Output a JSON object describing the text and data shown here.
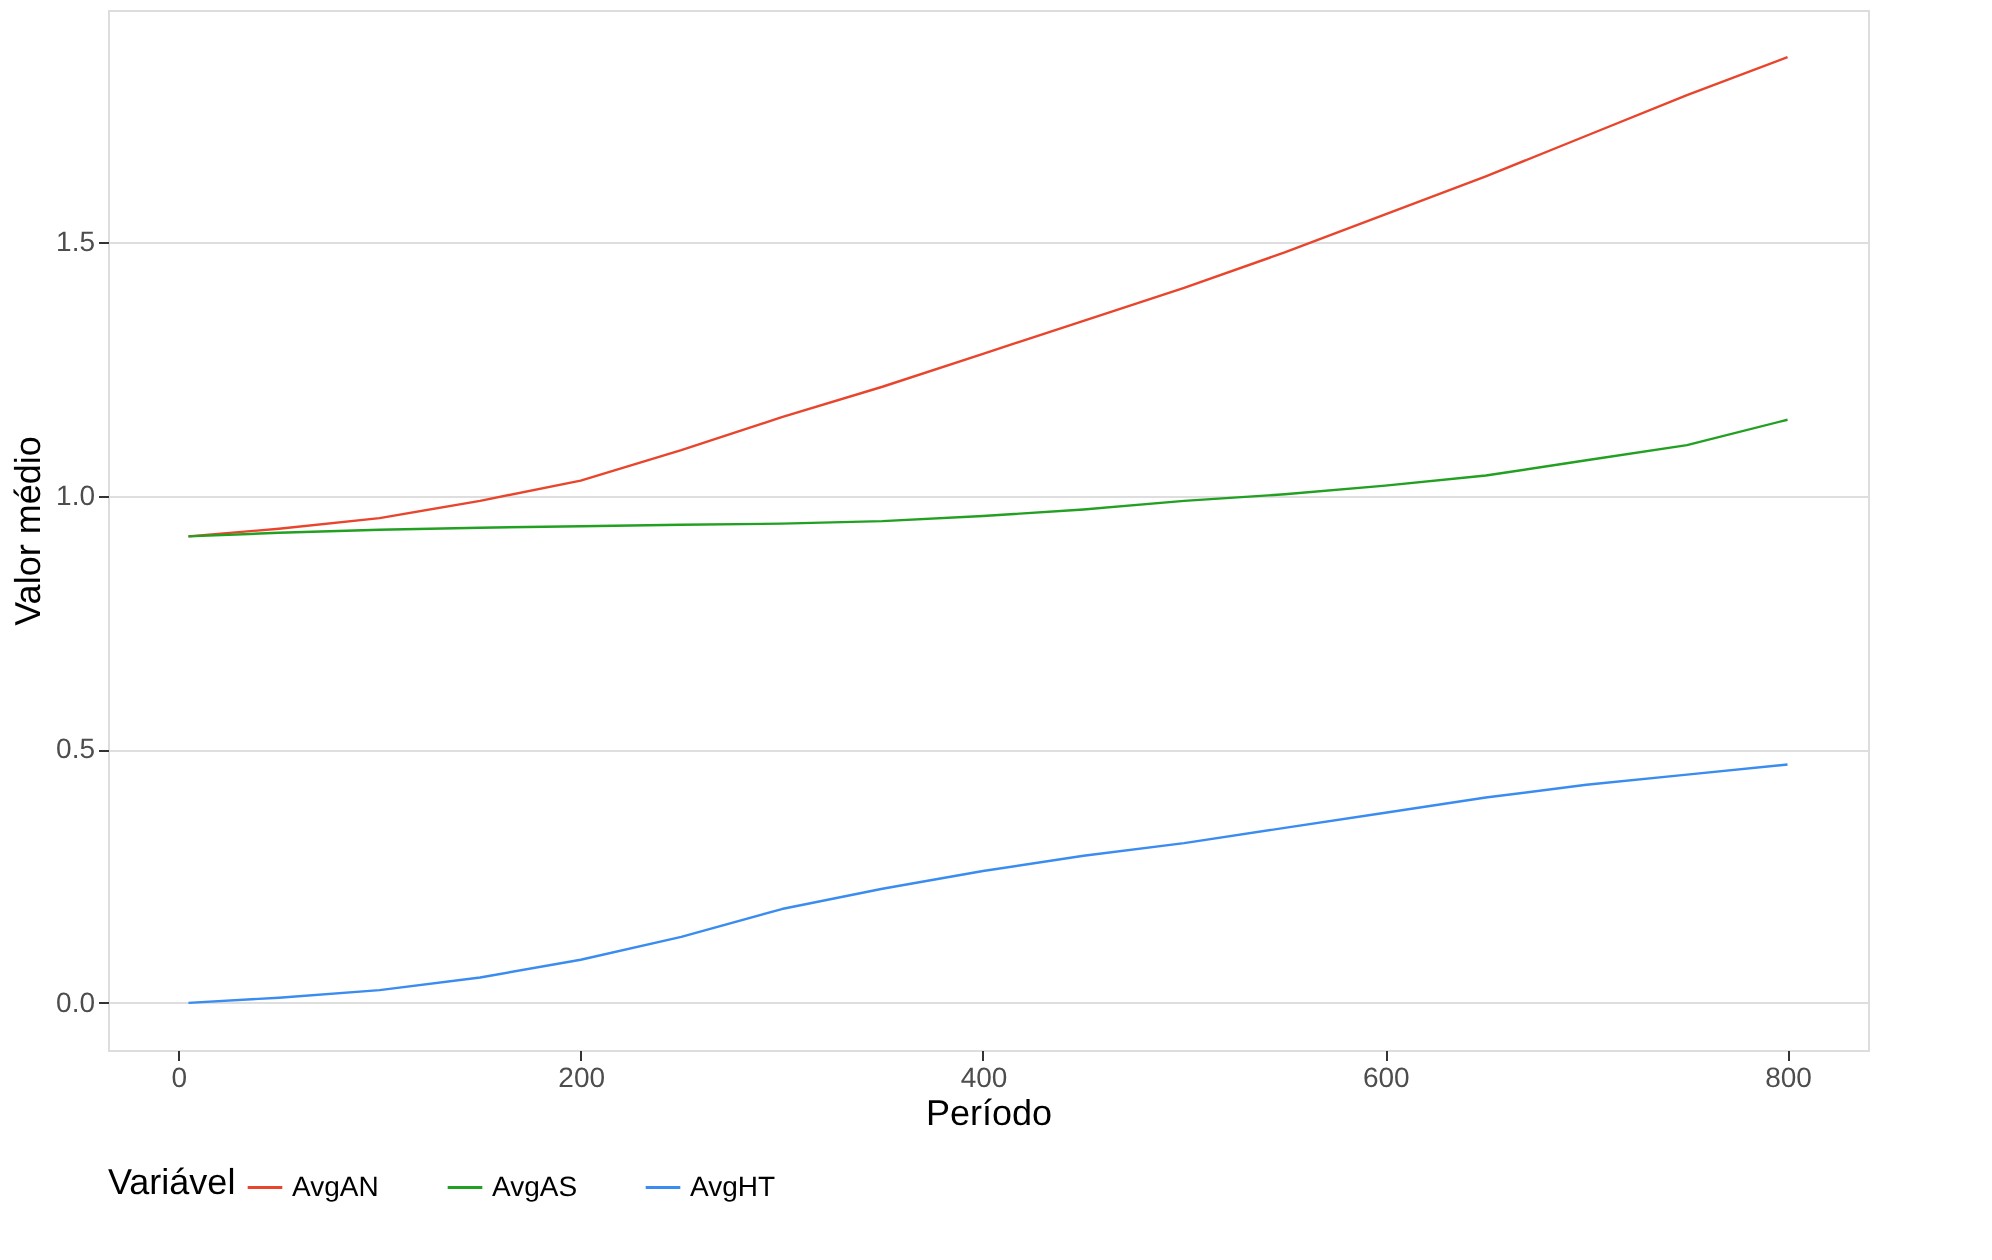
{
  "chart_data": {
    "type": "line",
    "xlabel": "Período",
    "ylabel": "Valor médio",
    "legend_title": "Variável",
    "x": [
      5,
      50,
      100,
      150,
      200,
      250,
      300,
      350,
      400,
      450,
      500,
      550,
      600,
      650,
      700,
      750,
      800
    ],
    "series": [
      {
        "name": "AvgAN",
        "color": "#e8452c",
        "values": [
          0.92,
          0.935,
          0.956,
          0.99,
          1.03,
          1.09,
          1.155,
          1.215,
          1.28,
          1.345,
          1.41,
          1.48,
          1.555,
          1.63,
          1.71,
          1.79,
          1.865
        ]
      },
      {
        "name": "AvgAS",
        "color": "#22a022",
        "values": [
          0.92,
          0.927,
          0.933,
          0.937,
          0.94,
          0.943,
          0.945,
          0.95,
          0.96,
          0.973,
          0.99,
          1.003,
          1.02,
          1.04,
          1.07,
          1.1,
          1.15
        ]
      },
      {
        "name": "AvgHT",
        "color": "#3a8cf0",
        "values": [
          0,
          0.01,
          0.025,
          0.05,
          0.085,
          0.13,
          0.185,
          0.225,
          0.26,
          0.29,
          0.315,
          0.345,
          0.375,
          0.405,
          0.43,
          0.45,
          0.47
        ]
      }
    ],
    "xlim": [
      -35,
      840
    ],
    "xticks": [
      0,
      200,
      400,
      600,
      800
    ],
    "ylim": [
      -0.093,
      1.958
    ],
    "yticks": [
      {
        "value": 0.0,
        "label": "0.0"
      },
      {
        "value": 0.5,
        "label": "0.5"
      },
      {
        "value": 1.0,
        "label": "1.0"
      },
      {
        "value": 1.5,
        "label": "1.5"
      }
    ],
    "grid": "y",
    "legend": "bottom",
    "marker": "none",
    "line_style": "solid"
  }
}
